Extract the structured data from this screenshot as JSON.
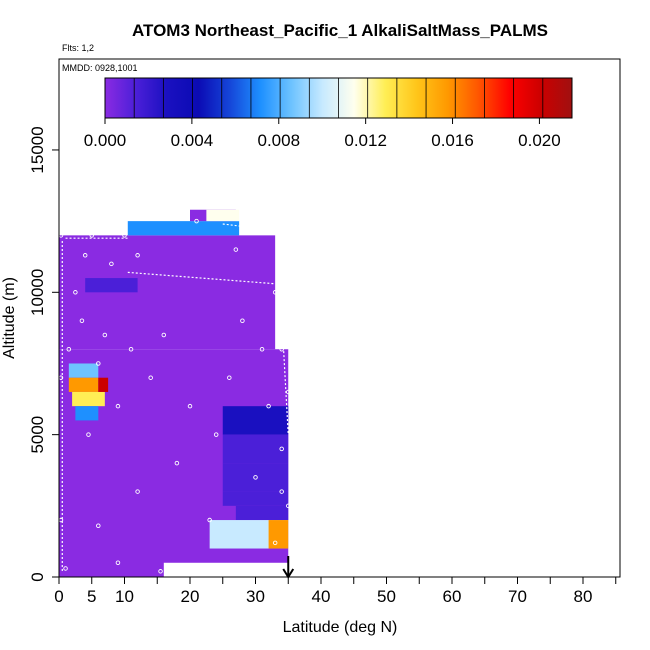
{
  "chart_data": {
    "type": "heatmap",
    "title": "ATOM3 Northeast_Pacific_1 AlkaliSaltMass_PALMS",
    "annotations": [
      "Flts: 1,2",
      "MMDD: 0928,1001"
    ],
    "xlabel": "Latitude (deg N)",
    "ylabel": "Altitude (m)",
    "xlim": [
      0,
      85
    ],
    "ylim": [
      0,
      17500
    ],
    "x_ticks": [
      0,
      5,
      10,
      20,
      30,
      40,
      50,
      60,
      70,
      80
    ],
    "x_minor_ticks": [
      15,
      25,
      35,
      45,
      55,
      65,
      75,
      85
    ],
    "y_ticks": [
      0,
      5000,
      10000,
      15000
    ],
    "colorbar": {
      "range": [
        0,
        0.0215
      ],
      "ticks": [
        "0.000",
        "0.004",
        "0.008",
        "0.012",
        "0.016",
        "0.020"
      ],
      "tick_values": [
        0,
        0.004,
        0.008,
        0.012,
        0.016,
        0.02
      ],
      "colors": [
        "#8a2be2",
        "#4b1fd8",
        "#1a10c0",
        "#0b0bb4",
        "#1545d8",
        "#1e90ff",
        "#6ec3ff",
        "#c8eaff",
        "#ffffee",
        "#ffee55",
        "#ffc61a",
        "#ff9900",
        "#ff5500",
        "#ff0000",
        "#cc0000",
        "#a01010"
      ]
    },
    "background_value": 0.0005,
    "cells": [
      {
        "lat": [
          0,
          35
        ],
        "alt": [
          0,
          8000
        ],
        "value": 0.0005
      },
      {
        "lat": [
          0,
          33
        ],
        "alt": [
          8000,
          12000
        ],
        "value": 0.0005
      },
      {
        "lat": [
          16,
          35
        ],
        "alt": [
          0,
          500
        ],
        "value": 0.0
      },
      {
        "lat": [
          10.5,
          27.5
        ],
        "alt": [
          12000,
          12500
        ],
        "value": 0.0075
      },
      {
        "lat": [
          20,
          27
        ],
        "alt": [
          12500,
          12900
        ],
        "value": 0.0005
      },
      {
        "lat": [
          22.5,
          27.5
        ],
        "alt": [
          12500,
          12900
        ],
        "value": 0.011
      },
      {
        "lat": [
          4,
          12
        ],
        "alt": [
          10000,
          10500
        ],
        "value": 0.002
      },
      {
        "lat": [
          1.5,
          6
        ],
        "alt": [
          7000,
          7500
        ],
        "value": 0.009
      },
      {
        "lat": [
          1.5,
          6
        ],
        "alt": [
          6500,
          7000
        ],
        "value": 0.015
      },
      {
        "lat": [
          2,
          7
        ],
        "alt": [
          6000,
          6500
        ],
        "value": 0.013
      },
      {
        "lat": [
          2.5,
          6
        ],
        "alt": [
          5500,
          6000
        ],
        "value": 0.007
      },
      {
        "lat": [
          6,
          7.5
        ],
        "alt": [
          6500,
          7000
        ],
        "value": 0.019
      },
      {
        "lat": [
          25,
          35
        ],
        "alt": [
          5000,
          6000
        ],
        "value": 0.003
      },
      {
        "lat": [
          25,
          35
        ],
        "alt": [
          4000,
          5000
        ],
        "value": 0.0025
      },
      {
        "lat": [
          25,
          35
        ],
        "alt": [
          3000,
          4000
        ],
        "value": 0.002
      },
      {
        "lat": [
          25,
          35
        ],
        "alt": [
          2500,
          3000
        ],
        "value": 0.0025
      },
      {
        "lat": [
          27,
          35
        ],
        "alt": [
          2000,
          2500
        ],
        "value": 0.0015
      },
      {
        "lat": [
          23,
          35
        ],
        "alt": [
          1000,
          2000
        ],
        "value": 0.01
      },
      {
        "lat": [
          32,
          35
        ],
        "alt": [
          1000,
          2000
        ],
        "value": 0.015
      }
    ],
    "flight_track_points": [
      {
        "lat": 0.3,
        "alt": 12000
      },
      {
        "lat": 0.3,
        "alt": 7000
      },
      {
        "lat": 0.3,
        "alt": 2000
      },
      {
        "lat": 1.5,
        "alt": 8000
      },
      {
        "lat": 2.5,
        "alt": 10000
      },
      {
        "lat": 3.5,
        "alt": 9000
      },
      {
        "lat": 4,
        "alt": 11300
      },
      {
        "lat": 4.5,
        "alt": 5000
      },
      {
        "lat": 5,
        "alt": 12000
      },
      {
        "lat": 6,
        "alt": 7500
      },
      {
        "lat": 7,
        "alt": 8500
      },
      {
        "lat": 8,
        "alt": 11000
      },
      {
        "lat": 9,
        "alt": 6000
      },
      {
        "lat": 10,
        "alt": 12000
      },
      {
        "lat": 11,
        "alt": 8000
      },
      {
        "lat": 12,
        "alt": 11300
      },
      {
        "lat": 6,
        "alt": 1800
      },
      {
        "lat": 9,
        "alt": 500
      },
      {
        "lat": 12,
        "alt": 3000
      },
      {
        "lat": 14,
        "alt": 7000
      },
      {
        "lat": 16,
        "alt": 8500
      },
      {
        "lat": 18,
        "alt": 4000
      },
      {
        "lat": 20,
        "alt": 6000
      },
      {
        "lat": 21,
        "alt": 12500
      },
      {
        "lat": 23,
        "alt": 2000
      },
      {
        "lat": 24,
        "alt": 5000
      },
      {
        "lat": 26,
        "alt": 7000
      },
      {
        "lat": 27,
        "alt": 11500
      },
      {
        "lat": 28,
        "alt": 9000
      },
      {
        "lat": 29,
        "alt": 12300
      },
      {
        "lat": 30,
        "alt": 3500
      },
      {
        "lat": 31,
        "alt": 8000
      },
      {
        "lat": 32,
        "alt": 6000
      },
      {
        "lat": 33,
        "alt": 10000
      },
      {
        "lat": 34,
        "alt": 4500
      },
      {
        "lat": 35,
        "alt": 2500
      },
      {
        "lat": 33,
        "alt": 1200
      },
      {
        "lat": 35,
        "alt": 6500
      },
      {
        "lat": 34,
        "alt": 8000
      },
      {
        "lat": 1,
        "alt": 300
      },
      {
        "lat": 15.5,
        "alt": 200
      },
      {
        "lat": 34,
        "alt": 3000
      }
    ],
    "flight_track_lines": [
      {
        "from": {
          "lat": 10.5,
          "alt": 10700
        },
        "to": {
          "lat": 33,
          "alt": 10300
        }
      },
      {
        "from": {
          "lat": 1,
          "alt": 11900
        },
        "to": {
          "lat": 10.5,
          "alt": 11900
        }
      },
      {
        "from": {
          "lat": 25,
          "alt": 12400
        },
        "to": {
          "lat": 32,
          "alt": 12200
        }
      },
      {
        "from": {
          "lat": 33.5,
          "alt": 11300
        },
        "to": {
          "lat": 35,
          "alt": 5000
        }
      },
      {
        "from": {
          "lat": 0.5,
          "alt": 11800
        },
        "to": {
          "lat": 0.5,
          "alt": 200
        }
      }
    ],
    "arrow_marker": {
      "lat": 35,
      "alt": 0
    }
  }
}
